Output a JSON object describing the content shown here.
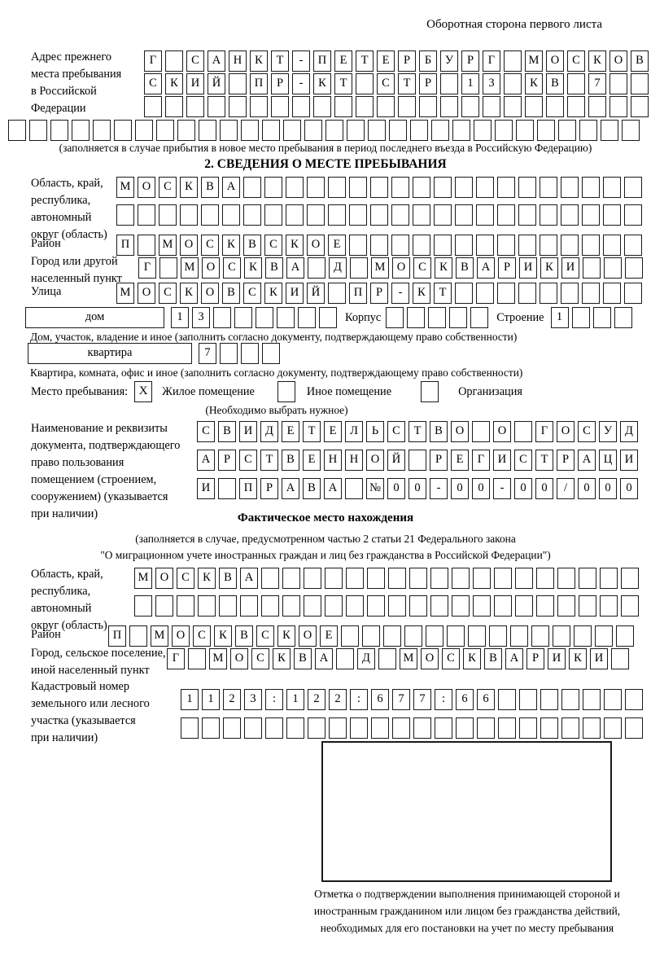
{
  "page": {
    "header_note": "Оборотная сторона первого листа"
  },
  "prev_address": {
    "label": "Адрес прежнего места пребывания в Российской Федерации",
    "rows": [
      {
        "count": 24,
        "chars": "Г САНКТ-ПЕТЕРБУРГ МОСКОВ"
      },
      {
        "count": 24,
        "chars": "СКИЙ ПР-КТ СТР 13 КВ 7"
      },
      {
        "count": 24,
        "chars": ""
      },
      {
        "count": 30,
        "chars": ""
      }
    ],
    "note": "(заполняется в случае прибытия в новое место пребывания в период последнего въезда в Российскую Федерацию)"
  },
  "section2": {
    "title": "2. СВЕДЕНИЯ О МЕСТЕ ПРЕБЫВАНИЯ",
    "region": {
      "label": "Область, край, республика, автономный округ (область)",
      "rows": [
        {
          "count": 25,
          "chars": "МОСКВА"
        },
        {
          "count": 25,
          "chars": ""
        }
      ]
    },
    "district": {
      "label": "Район",
      "row": {
        "count": 25,
        "chars": "П МОСКВСКОЕ"
      }
    },
    "city": {
      "label": "Город или другой населенный пункт",
      "row": {
        "count": 24,
        "chars": "Г МОСКВА Д МОСКВАРИКИ"
      }
    },
    "street": {
      "label": "Улица",
      "row": {
        "count": 25,
        "chars": "МОСКОВСКИЙ ПР-КТ"
      }
    },
    "house": {
      "type_label": "дом",
      "row": {
        "count": 8,
        "chars": "13"
      },
      "korpus_label": "Корпус",
      "korpus_row": {
        "count": 5,
        "chars": ""
      },
      "stroenie_label": "Строение",
      "stroenie_row": {
        "count": 4,
        "chars": "1"
      }
    },
    "house_note": "Дом, участок, владение и иное (заполнить согласно документу, подтверждающему право собственности)",
    "apartment": {
      "type_label": "квартира",
      "row": {
        "count": 4,
        "chars": "7"
      }
    },
    "apartment_note": "Квартира, комната, офис и иное (заполнить согласно документу, подтверждающему право собственности)",
    "stay": {
      "label": "Место пребывания:",
      "options": [
        {
          "label": "Жилое помещение",
          "checked": "X"
        },
        {
          "label": "Иное помещение",
          "checked": ""
        },
        {
          "label": "Организация",
          "checked": ""
        }
      ],
      "note": "(Необходимо выбрать нужное)"
    },
    "document": {
      "label": "Наименование и реквизиты документа, подтверждающего право пользования помещением (строением, сооружением) (указывается при наличии)",
      "rows": [
        {
          "count": 21,
          "chars": "СВИДЕТЕЛЬСТВО О ГОСУД"
        },
        {
          "count": 21,
          "chars": "АРСТВЕННОЙ РЕГИСТРАЦИ"
        },
        {
          "count": 21,
          "chars": "И ПРАВА №00-00-00/000"
        }
      ]
    }
  },
  "actual_location": {
    "title": "Фактическое место нахождения",
    "note_line1": "(заполняется в случае, предусмотренном частью 2 статьи 21 Федерального закона",
    "note_line2": "\"О миграционном учете иностранных граждан и лиц без гражданства в Российской Федерации\")",
    "region": {
      "label": "Область, край, республика, автономный округ (область)",
      "rows": [
        {
          "count": 24,
          "chars": "МОСКВА"
        },
        {
          "count": 24,
          "chars": ""
        }
      ]
    },
    "district": {
      "label": "Район",
      "row": {
        "count": 25,
        "chars": "П МОСКВСКОЕ"
      }
    },
    "city": {
      "label": "Город, сельское поселение, иной населенный пункт",
      "row": {
        "count": 22,
        "chars": "Г МОСКВА Д МОСКВАРИКИ"
      }
    },
    "cadastre": {
      "label": "Кадастровый номер земельного или лесного участка (указывается при наличии)",
      "rows": [
        {
          "count": 22,
          "chars": "1123:122:677:66"
        },
        {
          "count": 22,
          "chars": ""
        }
      ]
    }
  },
  "stamp": {
    "caption": "Отметка о подтверждении выполнения принимающей стороной и иностранным гражданином или лицом без гражданства действий, необходимых для его постановки на учет по месту пребывания"
  }
}
